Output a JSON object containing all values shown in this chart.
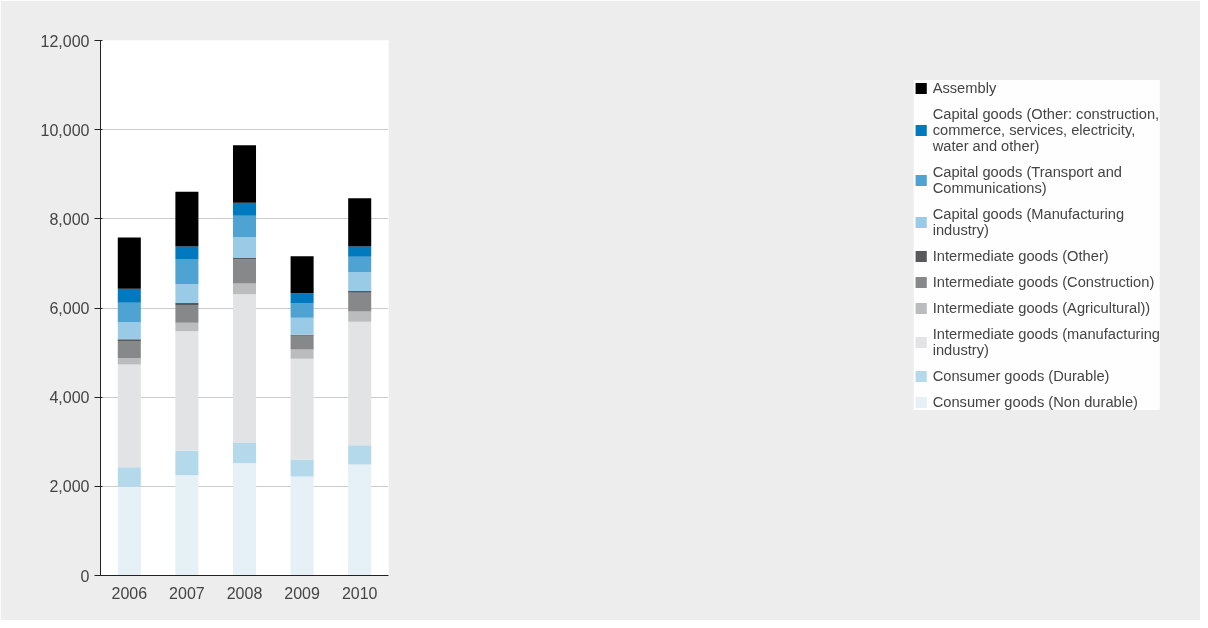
{
  "chart_data": {
    "type": "bar",
    "stacked": true,
    "categories": [
      "2006",
      "2007",
      "2008",
      "2009",
      "2010"
    ],
    "series": [
      {
        "name": "Consumer goods (Non durable)",
        "color": "#e6f0f7",
        "values": [
          1990,
          2250,
          2520,
          2220,
          2490
        ]
      },
      {
        "name": "Consumer goods (Durable)",
        "color": "#b3d9ea",
        "values": [
          440,
          550,
          450,
          380,
          430
        ]
      },
      {
        "name": "Intermediate goods (manufacturing industry)",
        "color": "#e2e3e5",
        "values": [
          2300,
          2680,
          3340,
          2260,
          2770
        ]
      },
      {
        "name": "Intermediate goods (Agricultural))",
        "color": "#bbbcbe",
        "values": [
          150,
          190,
          240,
          210,
          230
        ]
      },
      {
        "name": "Intermediate goods (Construction)",
        "color": "#87888a",
        "values": [
          380,
          400,
          540,
          310,
          420
        ]
      },
      {
        "name": "Intermediate goods (Other)",
        "color": "#58595b",
        "values": [
          40,
          40,
          30,
          20,
          40
        ]
      },
      {
        "name": "Capital goods (Manufacturing industry)",
        "color": "#9acbe6",
        "values": [
          380,
          420,
          470,
          380,
          430
        ]
      },
      {
        "name": "Capital goods (Transport and Communications)",
        "color": "#4ea3d2",
        "values": [
          440,
          570,
          480,
          320,
          340
        ]
      },
      {
        "name": "Capital goods (Other: construction, commerce, services, electricity, water and other)",
        "color": "#0079bf",
        "values": [
          310,
          280,
          290,
          230,
          230
        ]
      },
      {
        "name": "Assembly",
        "color": "#000000",
        "values": [
          1150,
          1230,
          1290,
          830,
          1080
        ]
      }
    ],
    "ylim": [
      0,
      12000
    ],
    "yticks": [
      {
        "value": 0,
        "label": "0"
      },
      {
        "value": 2000,
        "label": "2,000"
      },
      {
        "value": 4000,
        "label": "4,000"
      },
      {
        "value": 6000,
        "label": "6,000"
      },
      {
        "value": 8000,
        "label": "8,000"
      },
      {
        "value": 10000,
        "label": "10,000"
      },
      {
        "value": 12000,
        "label": "12,000"
      }
    ],
    "grid": "y",
    "legend": "right"
  }
}
